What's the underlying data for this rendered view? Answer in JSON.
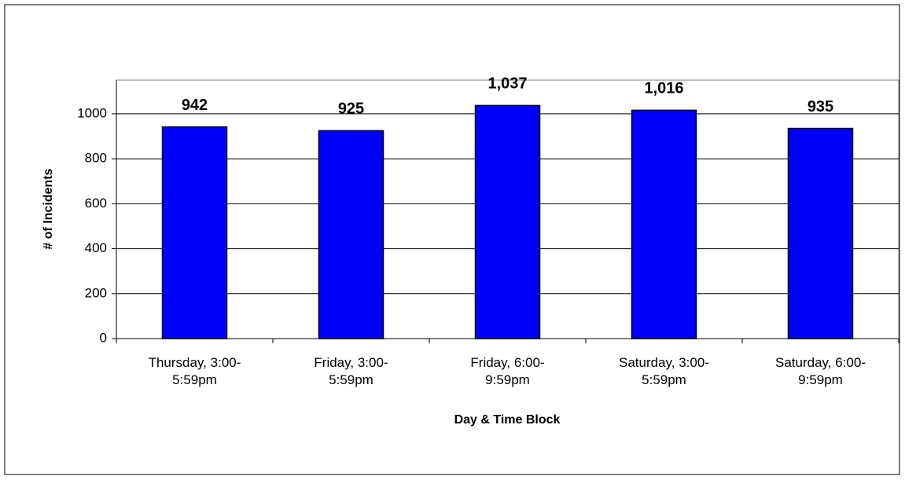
{
  "chart_data": {
    "type": "bar",
    "x_label": "Day & Time Block",
    "y_label": "# of Incidents",
    "categories": [
      "Thursday, 3:00-5:59pm",
      "Friday, 3:00-5:59pm",
      "Friday, 6:00-9:59pm",
      "Saturday, 3:00-5:59pm",
      "Saturday, 6:00-9:59pm"
    ],
    "values": [
      942,
      925,
      1037,
      1016,
      935
    ],
    "value_labels": [
      "942",
      "925",
      "1,037",
      "1,016",
      "935"
    ],
    "color": "#0000ff",
    "ylim": [
      0,
      1150
    ],
    "yticks": [
      0,
      200,
      400,
      600,
      800,
      1000
    ],
    "grid": true
  }
}
